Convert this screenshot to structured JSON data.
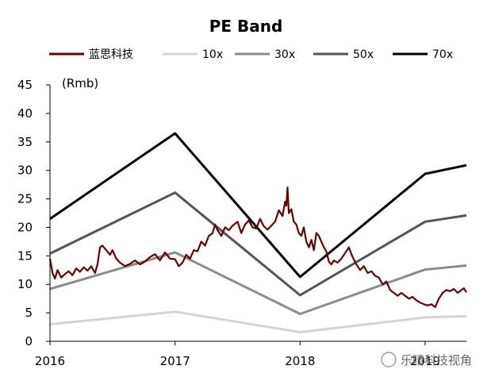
{
  "chart_data": {
    "type": "line",
    "title": "PE Band",
    "y_unit": "(Rmb)",
    "ylim": [
      0,
      45
    ],
    "y_ticks": [
      "0",
      "5",
      "10",
      "15",
      "20",
      "25",
      "30",
      "35",
      "40",
      "45"
    ],
    "xlim": [
      2016.0,
      2019.33
    ],
    "x_ticks": [
      "2016",
      "2017",
      "2018",
      "2019"
    ],
    "grid": false,
    "legend_position": "top",
    "series": [
      {
        "name": "蓝思科技",
        "color": "#6b0000",
        "x": [
          2016.0,
          2016.02,
          2016.04,
          2016.06,
          2016.09,
          2016.12,
          2016.15,
          2016.18,
          2016.21,
          2016.24,
          2016.27,
          2016.3,
          2016.33,
          2016.36,
          2016.38,
          2016.4,
          2016.42,
          2016.45,
          2016.48,
          2016.5,
          2016.53,
          2016.56,
          2016.6,
          2016.64,
          2016.68,
          2016.72,
          2016.76,
          2016.8,
          2016.84,
          2016.88,
          2016.92,
          2016.96,
          2017.0,
          2017.03,
          2017.06,
          2017.09,
          2017.12,
          2017.15,
          2017.18,
          2017.21,
          2017.24,
          2017.27,
          2017.3,
          2017.32,
          2017.34,
          2017.37,
          2017.4,
          2017.43,
          2017.46,
          2017.5,
          2017.53,
          2017.56,
          2017.59,
          2017.62,
          2017.65,
          2017.68,
          2017.71,
          2017.74,
          2017.77,
          2017.8,
          2017.83,
          2017.86,
          2017.88,
          2017.89,
          2017.9,
          2017.91,
          2017.93,
          2017.95,
          2017.97,
          2017.99,
          2018.01,
          2018.03,
          2018.05,
          2018.07,
          2018.09,
          2018.11,
          2018.13,
          2018.15,
          2018.17,
          2018.19,
          2018.21,
          2018.23,
          2018.25,
          2018.27,
          2018.3,
          2018.33,
          2018.36,
          2018.39,
          2018.42,
          2018.45,
          2018.48,
          2018.51,
          2018.54,
          2018.57,
          2018.6,
          2018.63,
          2018.66,
          2018.69,
          2018.72,
          2018.75,
          2018.78,
          2018.81,
          2018.84,
          2018.87,
          2018.9,
          2018.93,
          2018.96,
          2018.99,
          2019.02,
          2019.05,
          2019.08,
          2019.11,
          2019.14,
          2019.17,
          2019.2,
          2019.23,
          2019.26,
          2019.29,
          2019.31,
          2019.33
        ],
        "values": [
          14.5,
          12.0,
          11.0,
          12.5,
          11.2,
          11.8,
          12.3,
          11.6,
          12.8,
          12.2,
          13.0,
          12.4,
          13.2,
          12.0,
          13.5,
          16.5,
          16.8,
          16.0,
          15.2,
          16.0,
          14.5,
          13.8,
          13.2,
          13.6,
          14.2,
          13.5,
          14.0,
          14.8,
          15.3,
          14.2,
          15.6,
          14.5,
          14.4,
          13.2,
          13.8,
          15.2,
          14.5,
          16.0,
          15.8,
          17.5,
          16.8,
          18.5,
          19.0,
          20.5,
          19.5,
          18.5,
          20.0,
          19.5,
          20.3,
          21.0,
          19.0,
          20.5,
          21.2,
          20.0,
          19.8,
          21.5,
          20.2,
          19.6,
          20.3,
          21.0,
          23.0,
          22.0,
          24.5,
          23.8,
          27.0,
          22.5,
          23.2,
          21.0,
          20.5,
          19.0,
          18.5,
          20.0,
          17.5,
          16.5,
          17.8,
          16.0,
          19.0,
          18.5,
          17.5,
          16.5,
          15.8,
          14.0,
          13.5,
          14.2,
          13.8,
          14.5,
          15.5,
          16.5,
          14.8,
          13.5,
          12.5,
          13.2,
          12.0,
          12.3,
          11.5,
          11.2,
          10.0,
          10.5,
          9.0,
          8.5,
          8.0,
          8.5,
          8.0,
          7.5,
          7.8,
          7.2,
          6.8,
          6.5,
          6.3,
          6.5,
          6.0,
          7.5,
          8.5,
          9.0,
          8.8,
          9.2,
          8.5,
          9.0,
          9.3,
          8.6
        ]
      },
      {
        "name": "10x",
        "color": "#d4d4d4",
        "x": [
          2016.0,
          2017.0,
          2018.0,
          2019.0,
          2019.33
        ],
        "values": [
          3.0,
          5.2,
          1.6,
          4.2,
          4.4
        ]
      },
      {
        "name": "30x",
        "color": "#8c8c8c",
        "x": [
          2016.0,
          2017.0,
          2018.0,
          2019.0,
          2019.33
        ],
        "values": [
          9.2,
          15.6,
          4.8,
          12.6,
          13.3
        ]
      },
      {
        "name": "50x",
        "color": "#555555",
        "x": [
          2016.0,
          2017.0,
          2018.0,
          2019.0,
          2019.33
        ],
        "values": [
          15.4,
          26.1,
          8.1,
          21.0,
          22.1
        ]
      },
      {
        "name": "70x",
        "color": "#000000",
        "x": [
          2016.0,
          2017.0,
          2018.0,
          2019.0,
          2019.33
        ],
        "values": [
          21.5,
          36.5,
          11.3,
          29.4,
          30.9
        ]
      }
    ]
  },
  "watermark": "乐晴科技视角"
}
